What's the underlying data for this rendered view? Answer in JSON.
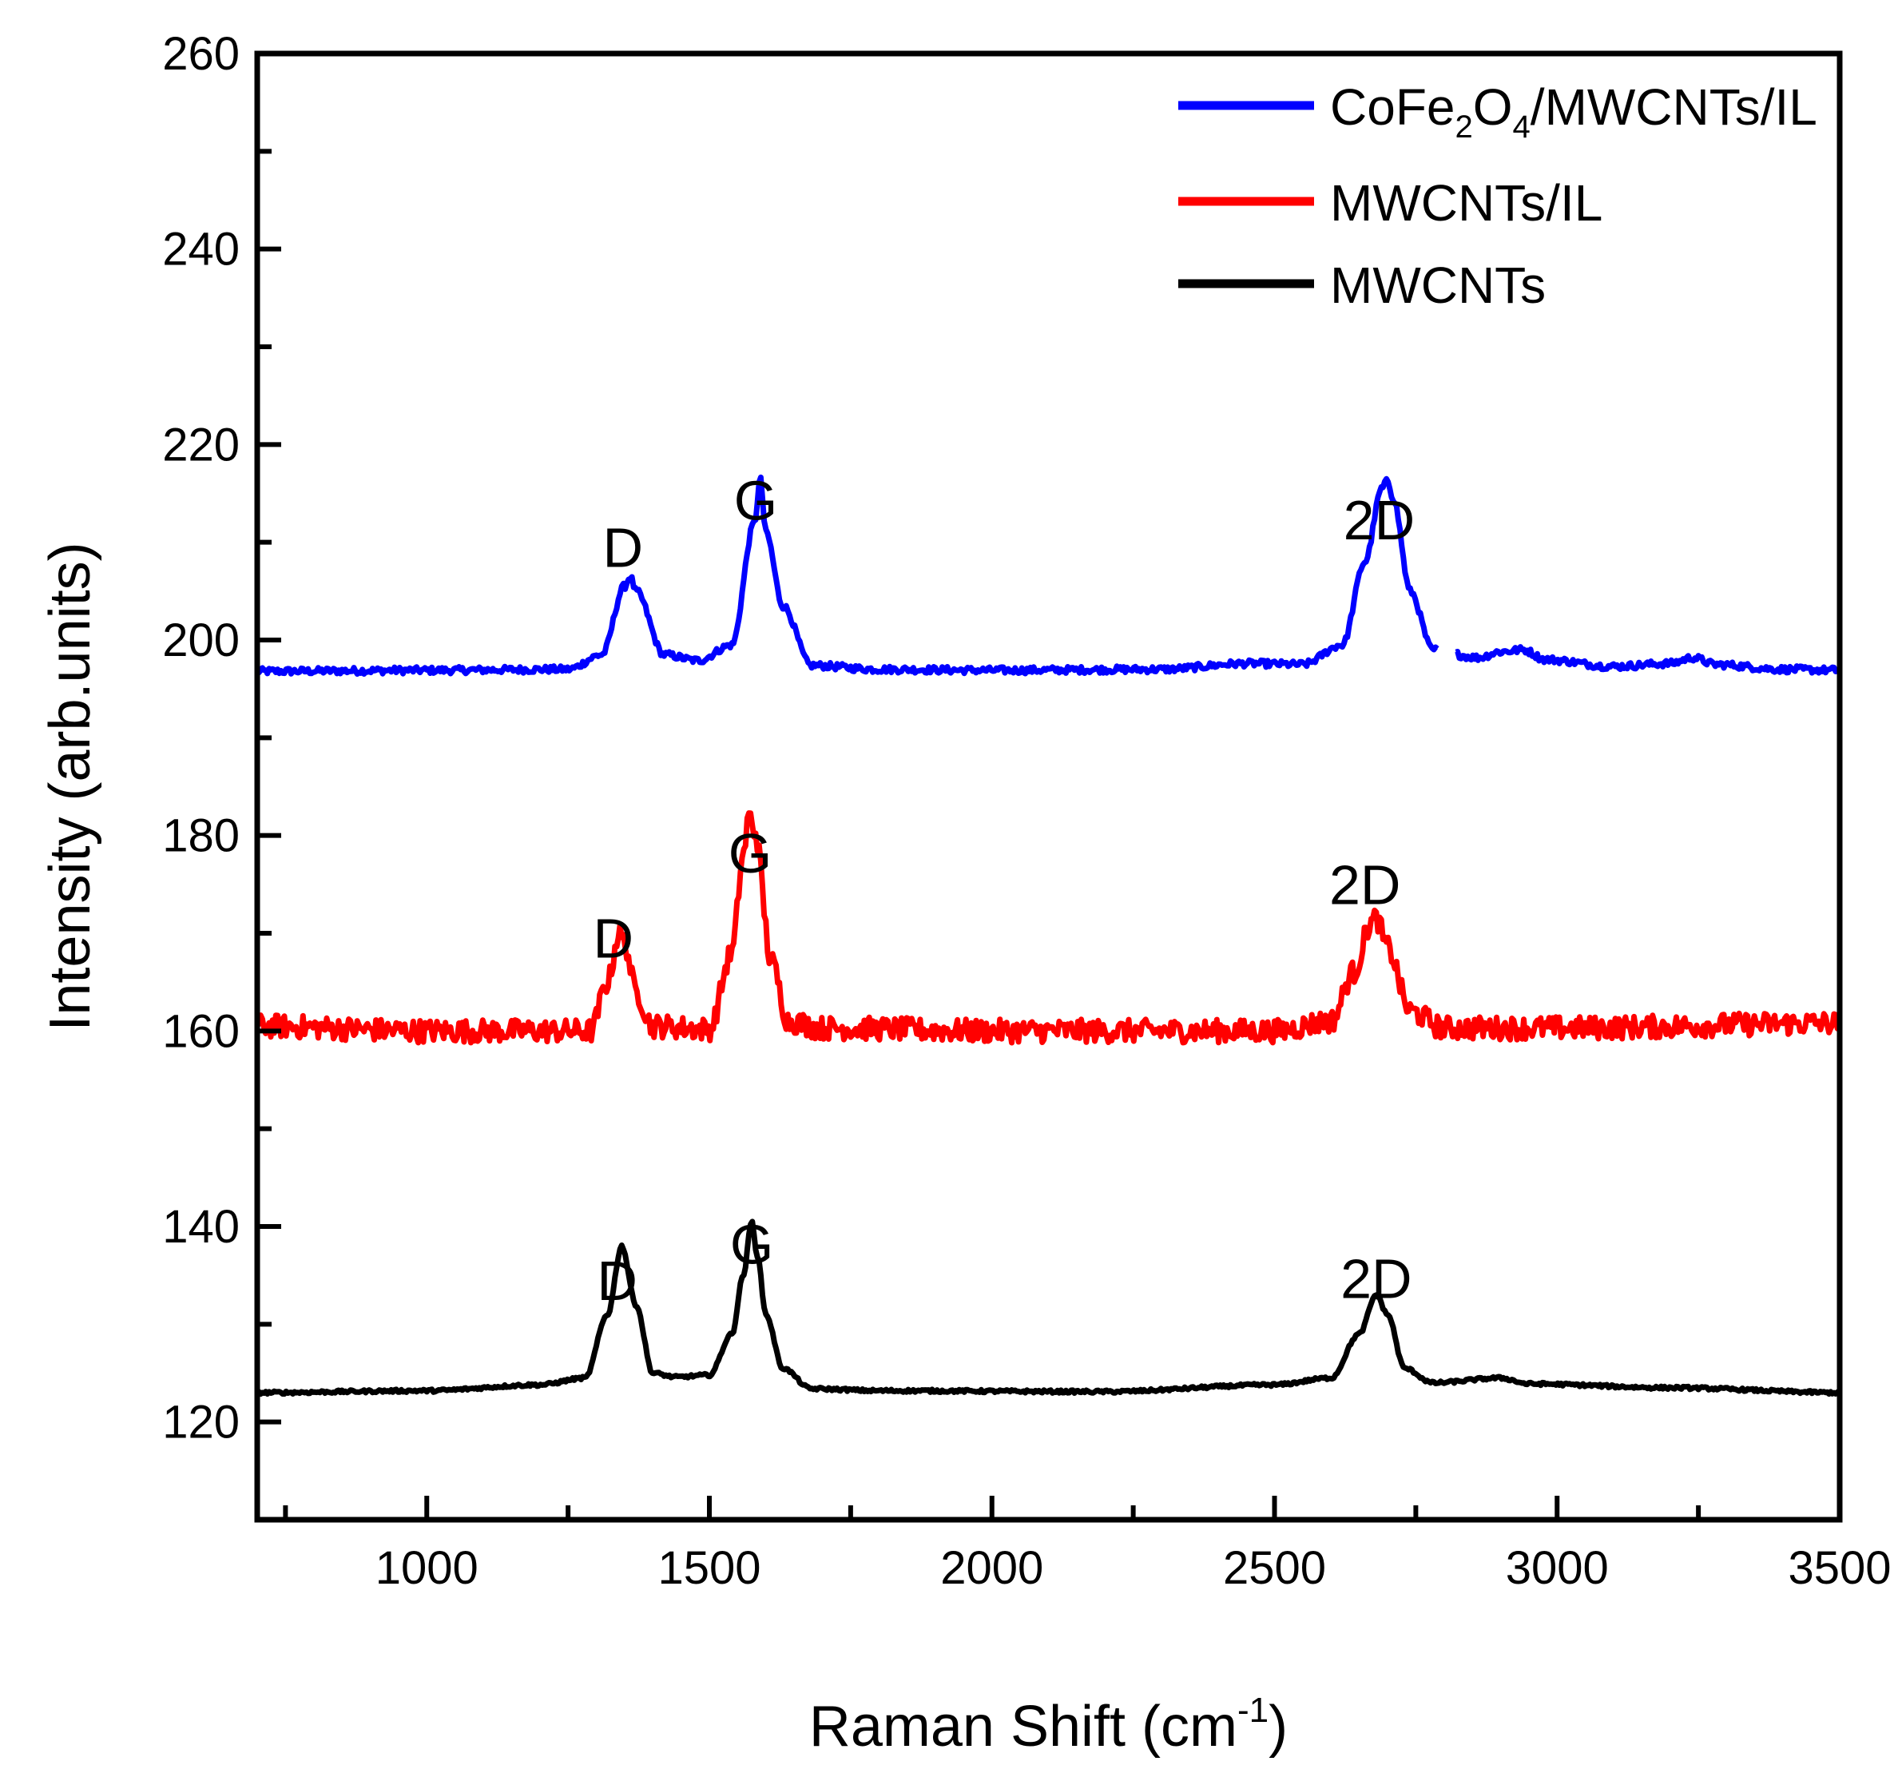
{
  "chart_data": {
    "type": "line",
    "title": "",
    "xlabel": "Raman Shift  (cm",
    "xlabel_sup": "-1",
    "xlabel_end": ")",
    "ylabel": "Intensity  (arb.units)",
    "xlim": [
      700,
      3500
    ],
    "ylim": [
      110,
      260
    ],
    "x_ticks": [
      1000,
      1500,
      2000,
      2500,
      3000,
      3500
    ],
    "y_ticks": [
      120,
      140,
      160,
      180,
      200,
      220,
      240,
      260
    ],
    "legend_position": "top-right",
    "grid": false,
    "series": [
      {
        "name": "CoFe2O4/MWCNTs/IL",
        "legend_parts": [
          "CoFe",
          "2",
          "O",
          "4",
          "/MWCNTs/IL"
        ],
        "color": "#0000ff",
        "baseline": 197,
        "noise": 0.35,
        "gap": [
          2790,
          2820
        ],
        "x": [
          700,
          1000,
          1250,
          1310,
          1350,
          1360,
          1370,
          1420,
          1480,
          1540,
          1580,
          1590,
          1600,
          1630,
          1680,
          1800,
          2000,
          2300,
          2450,
          2550,
          2620,
          2660,
          2690,
          2700,
          2710,
          2740,
          2780,
          2860,
          2900,
          2940,
          2980,
          3100,
          3200,
          3240,
          3280,
          3400,
          3500
        ],
        "y": [
          196.8,
          196.9,
          197.0,
          198.5,
          205.5,
          206.5,
          205.0,
          198.5,
          197.9,
          199.5,
          212.0,
          216.5,
          211.0,
          203.5,
          197.4,
          197.0,
          196.9,
          197.0,
          197.6,
          197.5,
          199.5,
          208.0,
          215.5,
          216.3,
          214.5,
          205.0,
          199.0,
          198.2,
          198.8,
          199.0,
          198.0,
          197.3,
          197.6,
          198.2,
          197.5,
          197.0,
          196.9
        ]
      },
      {
        "name": "MWCNTs/IL",
        "legend_parts": [
          "MWCNTs/IL"
        ],
        "color": "#ff0000",
        "baseline": 160,
        "noise": 1.2,
        "gap": null,
        "x": [
          700,
          1000,
          1290,
          1320,
          1340,
          1350,
          1370,
          1400,
          1500,
          1540,
          1560,
          1570,
          1580,
          1610,
          1640,
          1700,
          2000,
          2500,
          2600,
          2640,
          2670,
          2680,
          2700,
          2740,
          2800,
          3000,
          3500
        ],
        "y": [
          160.5,
          160.0,
          160.0,
          165.0,
          170.0,
          169.0,
          164.0,
          160.5,
          160.2,
          168.0,
          178.0,
          182.0,
          180.5,
          167.0,
          161.0,
          160.3,
          160.0,
          160.0,
          161.0,
          166.0,
          171.0,
          171.5,
          168.5,
          162.0,
          160.3,
          160.3,
          160.8
        ]
      },
      {
        "name": "MWCNTs",
        "legend_parts": [
          "MWCNTs"
        ],
        "color": "#000000",
        "baseline": 123,
        "noise": 0.15,
        "gap": null,
        "x": [
          700,
          1000,
          1200,
          1280,
          1320,
          1345,
          1370,
          1400,
          1440,
          1500,
          1540,
          1560,
          1575,
          1585,
          1600,
          1630,
          1680,
          1800,
          2200,
          2500,
          2600,
          2650,
          2680,
          2700,
          2730,
          2780,
          2900,
          2950,
          3200,
          3500
        ],
        "y": [
          123.0,
          123.2,
          123.8,
          124.5,
          131.0,
          138.0,
          132.0,
          125.0,
          124.6,
          124.8,
          129.0,
          135.0,
          140.5,
          137.0,
          131.0,
          125.5,
          123.4,
          123.2,
          123.1,
          123.8,
          124.5,
          129.0,
          133.0,
          131.0,
          125.5,
          124.0,
          124.5,
          123.9,
          123.5,
          123.0
        ]
      }
    ],
    "annotations": [
      {
        "text": "D",
        "x": 1347,
        "y": 207.5
      },
      {
        "text": "G",
        "x": 1582,
        "y": 212.3
      },
      {
        "text": "2D",
        "x": 2685,
        "y": 210.3
      },
      {
        "text": "D",
        "x": 1330,
        "y": 167.5
      },
      {
        "text": "G",
        "x": 1572,
        "y": 176.2
      },
      {
        "text": "2D",
        "x": 2660,
        "y": 173.0
      },
      {
        "text": "D",
        "x": 1337,
        "y": 132.5
      },
      {
        "text": "G",
        "x": 1575,
        "y": 136.2
      },
      {
        "text": "2D",
        "x": 2680,
        "y": 132.7
      }
    ]
  }
}
